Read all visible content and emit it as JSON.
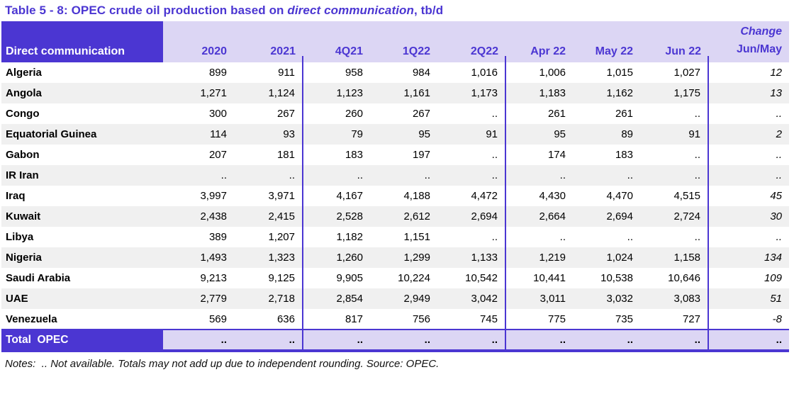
{
  "title": {
    "prefix": "Table 5 - 8: OPEC crude oil production based on ",
    "emphasis": "direct communication",
    "suffix": ", tb/d"
  },
  "table": {
    "corner_label": "Direct communication",
    "change_label": "Change",
    "columns": [
      "2020",
      "2021",
      "4Q21",
      "1Q22",
      "2Q22",
      "Apr 22",
      "May 22",
      "Jun 22",
      "Jun/May"
    ],
    "rows": [
      {
        "label": "Algeria",
        "values": [
          "899",
          "911",
          "958",
          "984",
          "1,016",
          "1,006",
          "1,015",
          "1,027",
          "12"
        ]
      },
      {
        "label": "Angola",
        "values": [
          "1,271",
          "1,124",
          "1,123",
          "1,161",
          "1,173",
          "1,183",
          "1,162",
          "1,175",
          "13"
        ]
      },
      {
        "label": "Congo",
        "values": [
          "300",
          "267",
          "260",
          "267",
          "..",
          "261",
          "261",
          "..",
          ".."
        ]
      },
      {
        "label": "Equatorial Guinea",
        "values": [
          "114",
          "93",
          "79",
          "95",
          "91",
          "95",
          "89",
          "91",
          "2"
        ]
      },
      {
        "label": "Gabon",
        "values": [
          "207",
          "181",
          "183",
          "197",
          "..",
          "174",
          "183",
          "..",
          ".."
        ]
      },
      {
        "label": "IR Iran",
        "values": [
          "..",
          "..",
          "..",
          "..",
          "..",
          "..",
          "..",
          "..",
          ".."
        ]
      },
      {
        "label": "Iraq",
        "values": [
          "3,997",
          "3,971",
          "4,167",
          "4,188",
          "4,472",
          "4,430",
          "4,470",
          "4,515",
          "45"
        ]
      },
      {
        "label": "Kuwait",
        "values": [
          "2,438",
          "2,415",
          "2,528",
          "2,612",
          "2,694",
          "2,664",
          "2,694",
          "2,724",
          "30"
        ]
      },
      {
        "label": "Libya",
        "values": [
          "389",
          "1,207",
          "1,182",
          "1,151",
          "..",
          "..",
          "..",
          "..",
          ".."
        ]
      },
      {
        "label": "Nigeria",
        "values": [
          "1,493",
          "1,323",
          "1,260",
          "1,299",
          "1,133",
          "1,219",
          "1,024",
          "1,158",
          "134"
        ]
      },
      {
        "label": "Saudi Arabia",
        "values": [
          "9,213",
          "9,125",
          "9,905",
          "10,224",
          "10,542",
          "10,441",
          "10,538",
          "10,646",
          "109"
        ]
      },
      {
        "label": "UAE",
        "values": [
          "2,779",
          "2,718",
          "2,854",
          "2,949",
          "3,042",
          "3,011",
          "3,032",
          "3,083",
          "51"
        ]
      },
      {
        "label": "Venezuela",
        "values": [
          "569",
          "636",
          "817",
          "756",
          "745",
          "775",
          "735",
          "727",
          "-8"
        ]
      }
    ],
    "total": {
      "label": "Total  OPEC",
      "values": [
        "..",
        "..",
        "..",
        "..",
        "..",
        "..",
        "..",
        "..",
        ".."
      ]
    }
  },
  "notes": "Notes:  .. Not available. Totals may not add up due to independent rounding. Source: OPEC.",
  "colors": {
    "purple": "#4b36d2",
    "lavender": "#dcd6f4",
    "stripe": "#f0f0f0"
  }
}
